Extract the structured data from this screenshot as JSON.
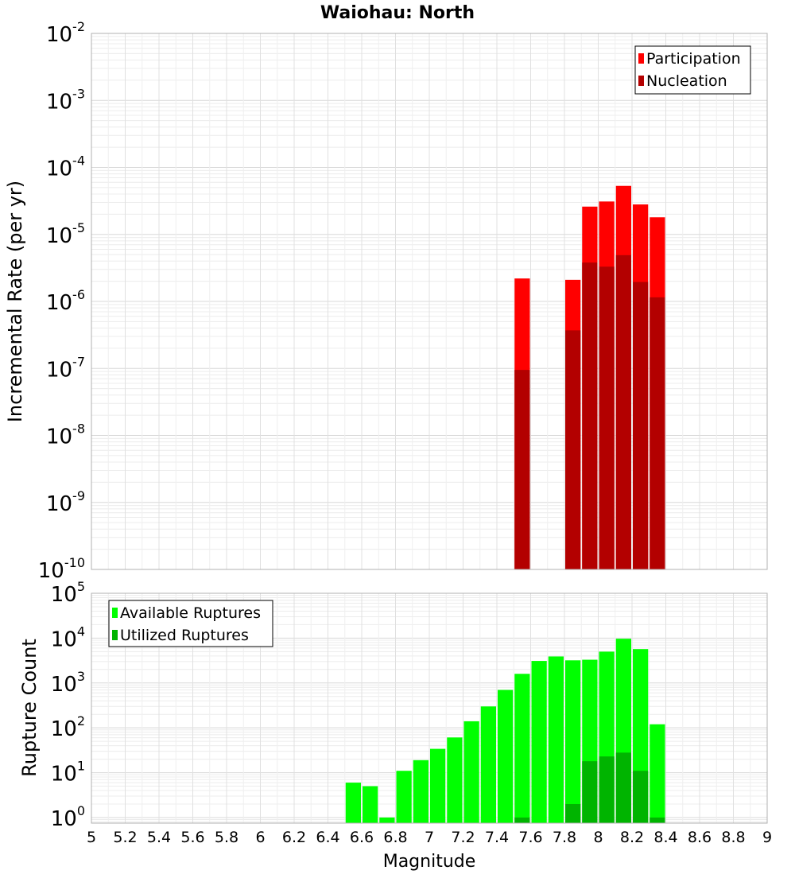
{
  "title": "Waiohau: North",
  "xlabel": "Magnitude",
  "chart_data": [
    {
      "type": "bar",
      "title": "Waiohau: North",
      "xlabel": "",
      "ylabel": "Incremental Rate (per yr)",
      "yscale": "log",
      "xlim": [
        5,
        9
      ],
      "ylim": [
        1e-10,
        0.01
      ],
      "y_ticks": [
        {
          "base": "10",
          "exp": "-10"
        },
        {
          "base": "10",
          "exp": "-9"
        },
        {
          "base": "10",
          "exp": "-8"
        },
        {
          "base": "10",
          "exp": "-7"
        },
        {
          "base": "10",
          "exp": "-6"
        },
        {
          "base": "10",
          "exp": "-5"
        },
        {
          "base": "10",
          "exp": "-4"
        },
        {
          "base": "10",
          "exp": "-3"
        },
        {
          "base": "10",
          "exp": "-2"
        }
      ],
      "bar_width": 0.1,
      "grid": true,
      "legend_position": "top-right",
      "series": [
        {
          "name": "Participation",
          "color": "#ff0000",
          "x": [
            7.55,
            7.85,
            7.95,
            8.05,
            8.15,
            8.25,
            8.35
          ],
          "values": [
            2.2e-06,
            2.1e-06,
            2.6e-05,
            3.1e-05,
            5.3e-05,
            2.8e-05,
            1.8e-05
          ]
        },
        {
          "name": "Nucleation",
          "color": "#b30000",
          "x": [
            7.55,
            7.85,
            7.95,
            8.05,
            8.15,
            8.25,
            8.35
          ],
          "values": [
            9.5e-08,
            3.7e-07,
            3.8e-06,
            3.3e-06,
            4.9e-06,
            1.95e-06,
            1.15e-06
          ]
        }
      ]
    },
    {
      "type": "bar",
      "xlabel": "Magnitude",
      "ylabel": "Rupture Count",
      "yscale": "log",
      "xlim": [
        5,
        9
      ],
      "ylim": [
        0.75,
        100000
      ],
      "y_ticks": [
        {
          "base": "10",
          "exp": "0"
        },
        {
          "base": "10",
          "exp": "1"
        },
        {
          "base": "10",
          "exp": "2"
        },
        {
          "base": "10",
          "exp": "3"
        },
        {
          "base": "10",
          "exp": "4"
        },
        {
          "base": "10",
          "exp": "5"
        }
      ],
      "x_tick_labels": [
        "5",
        "5.2",
        "5.4",
        "5.6",
        "5.8",
        "6",
        "6.2",
        "6.4",
        "6.6",
        "6.8",
        "7",
        "7.2",
        "7.4",
        "7.6",
        "7.8",
        "8",
        "8.2",
        "8.4",
        "8.6",
        "8.8",
        "9"
      ],
      "bar_width": 0.1,
      "grid": true,
      "legend_position": "top-left",
      "series": [
        {
          "name": "Available Ruptures",
          "color": "#00ff00",
          "x": [
            6.55,
            6.65,
            6.75,
            6.85,
            6.95,
            7.05,
            7.15,
            7.25,
            7.35,
            7.45,
            7.55,
            7.65,
            7.75,
            7.85,
            7.95,
            8.05,
            8.15,
            8.25,
            8.35
          ],
          "values": [
            6,
            5,
            1,
            11,
            19,
            34,
            61,
            140,
            300,
            700,
            1600,
            3100,
            3900,
            3200,
            3300,
            5000,
            9700,
            5700,
            120
          ]
        },
        {
          "name": "Utilized Ruptures",
          "color": "#00b400",
          "x": [
            7.55,
            7.85,
            7.95,
            8.05,
            8.15,
            8.25,
            8.35
          ],
          "values": [
            1,
            2,
            18,
            23,
            28,
            11,
            1
          ]
        }
      ]
    }
  ]
}
